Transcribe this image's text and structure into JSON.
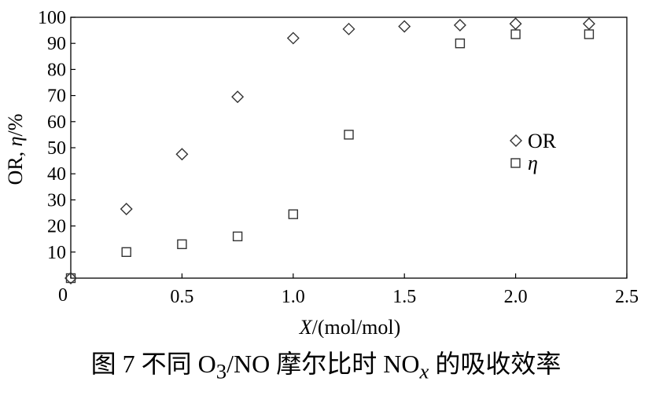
{
  "caption": {
    "prefix": "图 7 不同 O",
    "sub1": "3",
    "middle": "/NO 摩尔比时 NO",
    "sub2": "x",
    "suffix": " 的吸收效率"
  },
  "chart_data": {
    "type": "scatter",
    "xlabel_italic": "X",
    "xlabel_rest": "/(mol/mol)",
    "ylabel_prefix": "OR, ",
    "ylabel_italic": "η",
    "ylabel_suffix": "/%",
    "xlim": [
      0,
      2.5
    ],
    "ylim": [
      0,
      100
    ],
    "xticks": [
      0,
      0.5,
      1.0,
      1.5,
      2.0,
      2.5
    ],
    "xtick_labels": [
      "0.5",
      "1.0",
      "1.5",
      "2.0",
      "2.5"
    ],
    "yticks": [
      10,
      20,
      30,
      40,
      50,
      60,
      70,
      80,
      90,
      100
    ],
    "ytick_labels": [
      "10",
      "20",
      "30",
      "40",
      "50",
      "60",
      "70",
      "80",
      "90",
      "100"
    ],
    "origin_label": "0",
    "grid": false,
    "legend_position": "right",
    "series": [
      {
        "name": "OR",
        "marker": "diamond",
        "points": [
          [
            0,
            0
          ],
          [
            0.25,
            26.5
          ],
          [
            0.5,
            47.5
          ],
          [
            0.75,
            69.5
          ],
          [
            1.0,
            92
          ],
          [
            1.25,
            95.5
          ],
          [
            1.5,
            96.5
          ],
          [
            1.75,
            97
          ],
          [
            2.0,
            97.5
          ],
          [
            2.33,
            97.5
          ]
        ]
      },
      {
        "name": "η",
        "marker": "square",
        "points": [
          [
            0,
            0
          ],
          [
            0.25,
            10
          ],
          [
            0.5,
            13
          ],
          [
            0.75,
            16
          ],
          [
            1.0,
            24.5
          ],
          [
            1.25,
            55
          ],
          [
            1.75,
            90
          ],
          [
            2.0,
            93.5
          ],
          [
            2.33,
            93.5
          ]
        ]
      }
    ]
  }
}
